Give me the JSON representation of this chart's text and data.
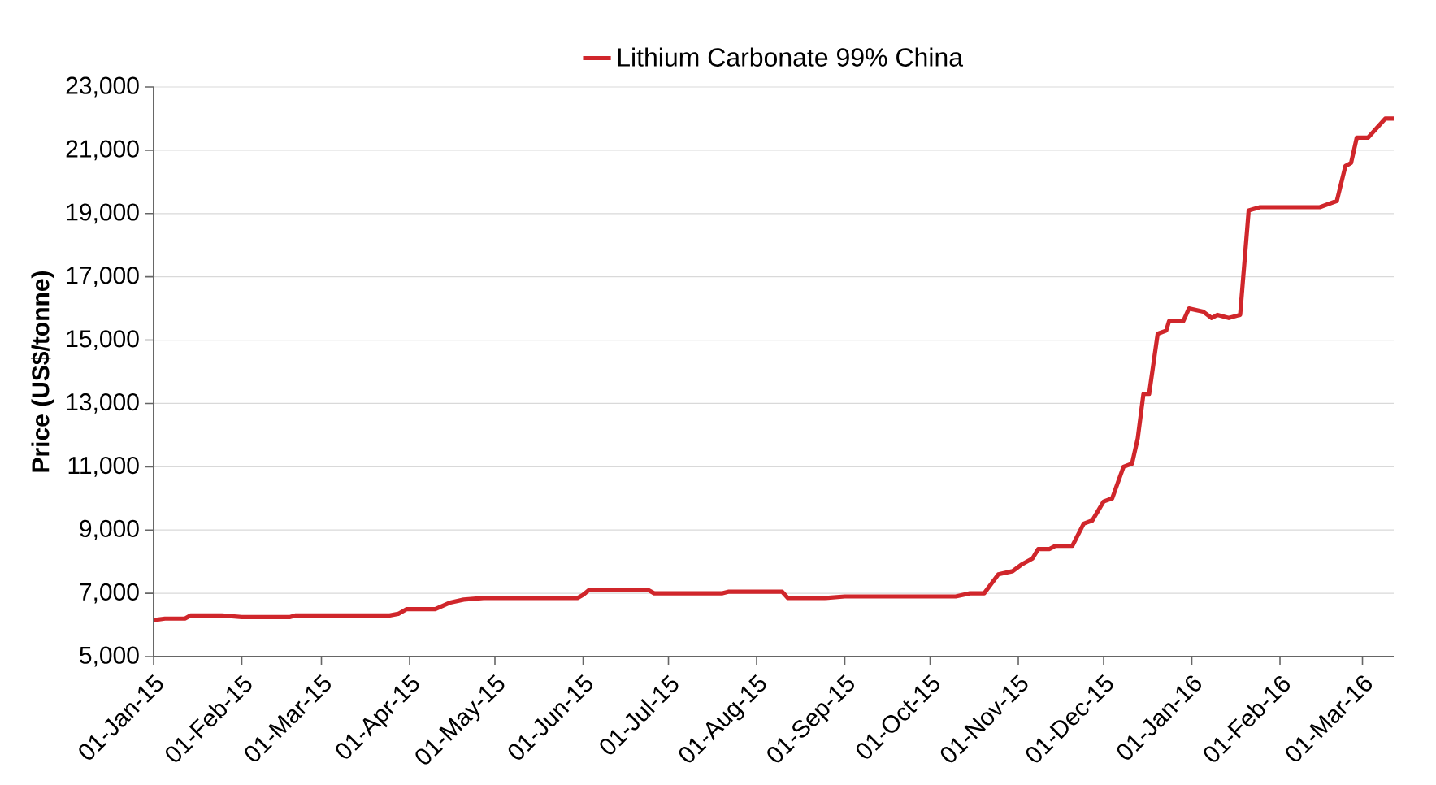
{
  "chart_data": {
    "type": "line",
    "ylabel": "Price (US$/tonne)",
    "legend": "top",
    "grid": "y",
    "line_style": "solid",
    "marker": "none",
    "xlim": [
      "2015-01-01",
      "2016-03-12"
    ],
    "ylim": [
      5000,
      23000
    ],
    "yticks": [
      {
        "value": 5000,
        "label": "5,000"
      },
      {
        "value": 7000,
        "label": "7,000"
      },
      {
        "value": 9000,
        "label": "9,000"
      },
      {
        "value": 11000,
        "label": "11,000"
      },
      {
        "value": 13000,
        "label": "13,000"
      },
      {
        "value": 15000,
        "label": "15,000"
      },
      {
        "value": 17000,
        "label": "17,000"
      },
      {
        "value": 19000,
        "label": "19,000"
      },
      {
        "value": 21000,
        "label": "21,000"
      },
      {
        "value": 23000,
        "label": "23,000"
      }
    ],
    "xticks": [
      {
        "value": "2015-01-01",
        "label": "01-Jan-15"
      },
      {
        "value": "2015-02-01",
        "label": "01-Feb-15"
      },
      {
        "value": "2015-03-01",
        "label": "01-Mar-15"
      },
      {
        "value": "2015-04-01",
        "label": "01-Apr-15"
      },
      {
        "value": "2015-05-01",
        "label": "01-May-15"
      },
      {
        "value": "2015-06-01",
        "label": "01-Jun-15"
      },
      {
        "value": "2015-07-01",
        "label": "01-Jul-15"
      },
      {
        "value": "2015-08-01",
        "label": "01-Aug-15"
      },
      {
        "value": "2015-09-01",
        "label": "01-Sep-15"
      },
      {
        "value": "2015-10-01",
        "label": "01-Oct-15"
      },
      {
        "value": "2015-11-01",
        "label": "01-Nov-15"
      },
      {
        "value": "2015-12-01",
        "label": "01-Dec-15"
      },
      {
        "value": "2016-01-01",
        "label": "01-Jan-16"
      },
      {
        "value": "2016-02-01",
        "label": "01-Feb-16"
      },
      {
        "value": "2016-03-01",
        "label": "01-Mar-16"
      }
    ],
    "series": [
      {
        "name": "Lithium Carbonate 99% China",
        "color": "#d0262b",
        "x": [
          "2015-01-01",
          "2015-01-05",
          "2015-01-12",
          "2015-01-14",
          "2015-01-25",
          "2015-02-01",
          "2015-02-18",
          "2015-02-20",
          "2015-03-25",
          "2015-03-28",
          "2015-03-31",
          "2015-04-10",
          "2015-04-15",
          "2015-04-20",
          "2015-04-27",
          "2015-05-30",
          "2015-06-01",
          "2015-06-03",
          "2015-06-24",
          "2015-06-26",
          "2015-07-20",
          "2015-07-22",
          "2015-08-10",
          "2015-08-12",
          "2015-08-25",
          "2015-09-01",
          "2015-10-10",
          "2015-10-15",
          "2015-10-20",
          "2015-10-25",
          "2015-10-30",
          "2015-11-02",
          "2015-11-06",
          "2015-11-08",
          "2015-11-12",
          "2015-11-14",
          "2015-11-20",
          "2015-11-24",
          "2015-11-27",
          "2015-11-29",
          "2015-12-01",
          "2015-12-04",
          "2015-12-08",
          "2015-12-11",
          "2015-12-13",
          "2015-12-15",
          "2015-12-17",
          "2015-12-20",
          "2015-12-23",
          "2015-12-24",
          "2015-12-29",
          "2015-12-31",
          "2016-01-05",
          "2016-01-08",
          "2016-01-10",
          "2016-01-14",
          "2016-01-18",
          "2016-01-21",
          "2016-01-25",
          "2016-02-15",
          "2016-02-21",
          "2016-02-24",
          "2016-02-26",
          "2016-02-28",
          "2016-03-03",
          "2016-03-06",
          "2016-03-09",
          "2016-03-12"
        ],
        "values": [
          6150,
          6200,
          6200,
          6300,
          6300,
          6250,
          6250,
          6300,
          6300,
          6350,
          6500,
          6500,
          6700,
          6800,
          6850,
          6850,
          6950,
          7100,
          7100,
          7000,
          7000,
          7050,
          7050,
          6850,
          6850,
          6900,
          6900,
          7000,
          7000,
          7600,
          7700,
          7900,
          8100,
          8400,
          8400,
          8500,
          8500,
          9200,
          9300,
          9600,
          9900,
          10000,
          11000,
          11100,
          11900,
          13300,
          13300,
          15200,
          15300,
          15600,
          15600,
          16000,
          15900,
          15700,
          15800,
          15700,
          15800,
          19100,
          19200,
          19200,
          19400,
          20500,
          20600,
          21400,
          21400,
          21700,
          22000,
          22000
        ]
      }
    ]
  }
}
